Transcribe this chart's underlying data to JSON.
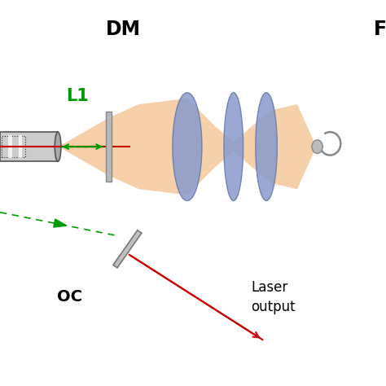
{
  "bg_color": "#ffffff",
  "beam_color": "#f5c9a0",
  "red_color": "#cc0000",
  "green_color": "#009900",
  "lens_color": "#8899cc",
  "lens_edge_color": "#6677aa",
  "mirror_color": "#b0b0b0",
  "mirror_edge": "#777777",
  "cyl_color": "#cccccc",
  "cyl_edge": "#555555",
  "label_DM": "DM",
  "label_F": "F",
  "label_L1": "L1",
  "label_OC": "OC",
  "label_laser1": "Laser",
  "label_laser2": "output",
  "title_fontsize": 17,
  "label_fontsize": 14,
  "L1_fontsize": 15
}
